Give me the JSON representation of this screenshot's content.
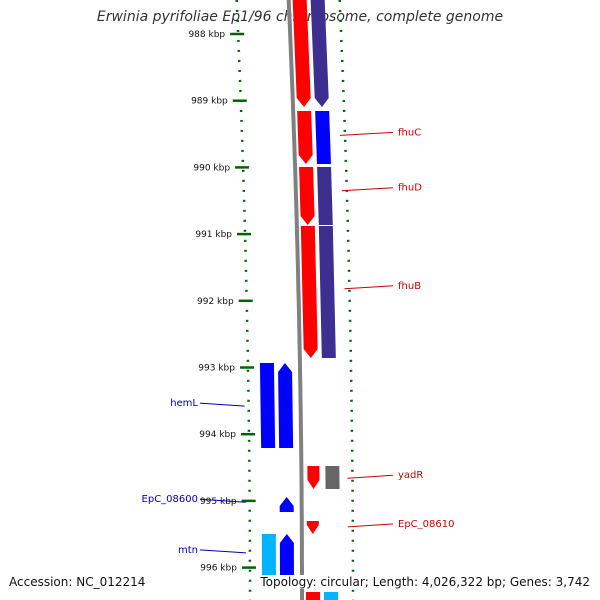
{
  "title": "Erwinia pyrifoliae Ep1/96 chromosome, complete genome",
  "footer": {
    "accession": "Accession: NC_012214",
    "summary": "Topology: circular; Length: 4,026,322 bp; Genes: 3,742"
  },
  "scale": {
    "unit": "kbp",
    "ticks": [
      {
        "kbp": 988,
        "label": "988 kbp"
      },
      {
        "kbp": 989,
        "label": "989 kbp"
      },
      {
        "kbp": 990,
        "label": "990 kbp"
      },
      {
        "kbp": 991,
        "label": "991 kbp"
      },
      {
        "kbp": 992,
        "label": "992 kbp"
      },
      {
        "kbp": 993,
        "label": "993 kbp"
      },
      {
        "kbp": 994,
        "label": "994 kbp"
      },
      {
        "kbp": 995,
        "label": "995 kbp"
      },
      {
        "kbp": 996,
        "label": "996 kbp"
      }
    ]
  },
  "colors": {
    "forward_cds": "#ff0000",
    "forward_gene": "#3d2f8f",
    "reverse_cds": "#0000ff",
    "reverse_gene_light": "#00b4ff",
    "gray_feature": "#666666",
    "backbone": "#808080",
    "dotted_ring": "#006400",
    "forward_label": "#cc0000",
    "reverse_label": "#0000bb"
  },
  "labels": [
    {
      "name": "fhuC",
      "side": "right",
      "kbp": 989.52
    },
    {
      "name": "fhuD",
      "side": "right",
      "kbp": 990.35
    },
    {
      "name": "fhuB",
      "side": "right",
      "kbp": 991.82
    },
    {
      "name": "yadR",
      "side": "right",
      "kbp": 994.66
    },
    {
      "name": "EpC_08610",
      "side": "right",
      "kbp": 995.39
    },
    {
      "name": "hemL",
      "side": "left",
      "kbp": 993.58
    },
    {
      "name": "EpC_08600",
      "side": "left",
      "kbp": 995.02
    },
    {
      "name": "mtn",
      "side": "left",
      "kbp": 995.78
    }
  ]
}
